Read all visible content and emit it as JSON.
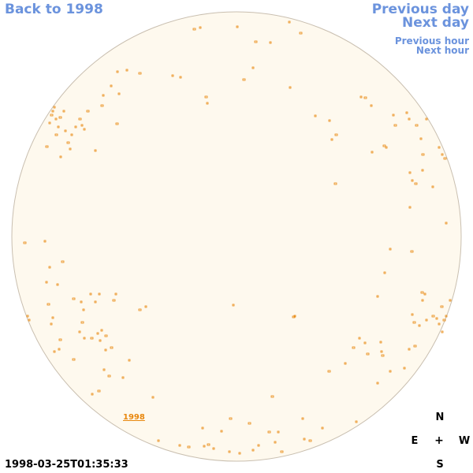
{
  "nav": {
    "back": "Back to 1998",
    "previous_day": "Previous day",
    "next_day": "Next day",
    "previous_hour": "Previous hour",
    "next_hour": "Next hour"
  },
  "disk": {
    "year_label": "1998",
    "fill_color": "#fef9ee",
    "edge_color": "#c9bfb0",
    "contour_color": "#e8870d"
  },
  "compass": {
    "north": "N",
    "east": "E",
    "center": "+",
    "west": "W",
    "south": "S"
  },
  "timestamp": "1998-03-25T01:35:33"
}
